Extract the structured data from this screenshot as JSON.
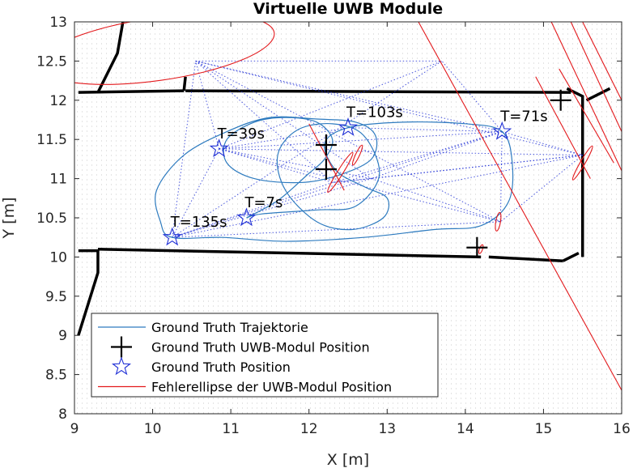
{
  "chart_data": {
    "type": "scatter",
    "title": "Virtuelle UWB Module",
    "xlabel": "X [m]",
    "ylabel": "Y [m]",
    "xlim": [
      9,
      16
    ],
    "ylim": [
      8,
      13
    ],
    "x_ticks": [
      9,
      10,
      11,
      12,
      13,
      14,
      15,
      16
    ],
    "y_ticks": [
      8,
      8.5,
      9,
      9.5,
      10,
      10.5,
      11,
      11.5,
      12,
      12.5,
      13
    ],
    "grid": false,
    "legend_location": "bottom-left",
    "colors": {
      "trajectory": "#2e7bbf",
      "modules": "#000000",
      "positions": "#1f2fd6",
      "ellipses": "#e3191c",
      "rays": "#1f2fd6",
      "map": "#000000"
    },
    "legend": [
      {
        "label": "Ground Truth Trajektorie",
        "marker": "line",
        "color": "#2e7bbf"
      },
      {
        "label": "Ground Truth UWB-Modul Position",
        "marker": "plus",
        "color": "#000000"
      },
      {
        "label": "Ground Truth Position",
        "marker": "star",
        "color": "#1f2fd6"
      },
      {
        "label": "Fehlerellipse der UWB-Modul Position",
        "marker": "line",
        "color": "#e3191c"
      }
    ],
    "ground_truth_positions": [
      {
        "label": "T=7s",
        "x": 11.2,
        "y": 10.5
      },
      {
        "label": "T=39s",
        "x": 10.85,
        "y": 11.38
      },
      {
        "label": "T=71s",
        "x": 14.47,
        "y": 11.6
      },
      {
        "label": "T=103s",
        "x": 12.5,
        "y": 11.65
      },
      {
        "label": "T=135s",
        "x": 10.25,
        "y": 10.25
      }
    ],
    "uwb_modules": [
      {
        "x": 12.22,
        "y": 11.43
      },
      {
        "x": 12.22,
        "y": 11.12
      },
      {
        "x": 15.22,
        "y": 12.0
      },
      {
        "x": 14.15,
        "y": 10.12
      }
    ],
    "trajectory": [
      [
        11.2,
        10.5
      ],
      [
        11.6,
        10.72
      ],
      [
        11.98,
        11.05
      ],
      [
        12.2,
        11.25
      ],
      [
        12.3,
        11.5
      ],
      [
        12.1,
        11.72
      ],
      [
        11.7,
        11.78
      ],
      [
        11.3,
        11.72
      ],
      [
        10.95,
        11.5
      ],
      [
        10.95,
        11.2
      ],
      [
        11.3,
        11.0
      ],
      [
        11.9,
        10.95
      ],
      [
        12.4,
        11.05
      ],
      [
        12.8,
        11.25
      ],
      [
        12.85,
        11.55
      ],
      [
        12.6,
        11.72
      ],
      [
        12.1,
        11.76
      ],
      [
        11.5,
        11.78
      ],
      [
        10.95,
        11.6
      ],
      [
        10.4,
        11.3
      ],
      [
        10.05,
        10.85
      ],
      [
        10.1,
        10.45
      ],
      [
        10.25,
        10.25
      ],
      [
        10.9,
        10.25
      ],
      [
        11.7,
        10.2
      ],
      [
        12.7,
        10.25
      ],
      [
        13.6,
        10.35
      ],
      [
        14.2,
        10.4
      ],
      [
        14.55,
        10.7
      ],
      [
        14.6,
        11.2
      ],
      [
        14.47,
        11.6
      ],
      [
        14.0,
        11.7
      ],
      [
        13.2,
        11.72
      ],
      [
        12.5,
        11.65
      ],
      [
        12.2,
        11.45
      ],
      [
        12.35,
        11.1
      ],
      [
        12.7,
        10.9
      ],
      [
        13.0,
        10.75
      ],
      [
        12.95,
        10.5
      ],
      [
        12.55,
        10.35
      ],
      [
        12.1,
        10.45
      ],
      [
        11.7,
        10.85
      ],
      [
        11.6,
        11.3
      ],
      [
        11.85,
        11.62
      ],
      [
        12.3,
        11.7
      ],
      [
        12.7,
        11.55
      ],
      [
        12.9,
        11.05
      ],
      [
        12.6,
        10.65
      ],
      [
        12.1,
        10.6
      ],
      [
        11.4,
        10.55
      ],
      [
        11.2,
        10.5
      ]
    ],
    "error_ellipses": [
      {
        "cx": 10.05,
        "cy": 12.65,
        "rx": 1.52,
        "ry": 0.4,
        "angle_deg": 8
      },
      {
        "cx": 12.4,
        "cy": 11.08,
        "rx": 0.3,
        "ry": 0.035,
        "angle_deg": 58
      },
      {
        "cx": 12.62,
        "cy": 11.3,
        "rx": 0.14,
        "ry": 0.025,
        "angle_deg": 65
      },
      {
        "cx": 14.42,
        "cy": 10.45,
        "rx": 0.12,
        "ry": 0.03,
        "angle_deg": 80
      },
      {
        "cx": 15.5,
        "cy": 11.2,
        "rx": 0.25,
        "ry": 0.03,
        "angle_deg": 60
      },
      {
        "cx": 14.2,
        "cy": 10.1,
        "rx": 0.06,
        "ry": 0.02,
        "angle_deg": 70
      }
    ],
    "error_lines": [
      [
        [
          13.4,
          13.0
        ],
        [
          16.0,
          8.3
        ]
      ],
      [
        [
          15.1,
          13.0
        ],
        [
          16.0,
          11.1
        ]
      ],
      [
        [
          15.35,
          13.0
        ],
        [
          16.0,
          11.6
        ]
      ],
      [
        [
          15.5,
          13.0
        ],
        [
          16.0,
          12.0
        ]
      ],
      [
        [
          12.0,
          11.7
        ],
        [
          12.45,
          10.85
        ]
      ],
      [
        [
          14.9,
          12.3
        ],
        [
          15.6,
          11.0
        ]
      ],
      [
        [
          15.2,
          12.4
        ],
        [
          15.9,
          11.2
        ]
      ]
    ]
  }
}
